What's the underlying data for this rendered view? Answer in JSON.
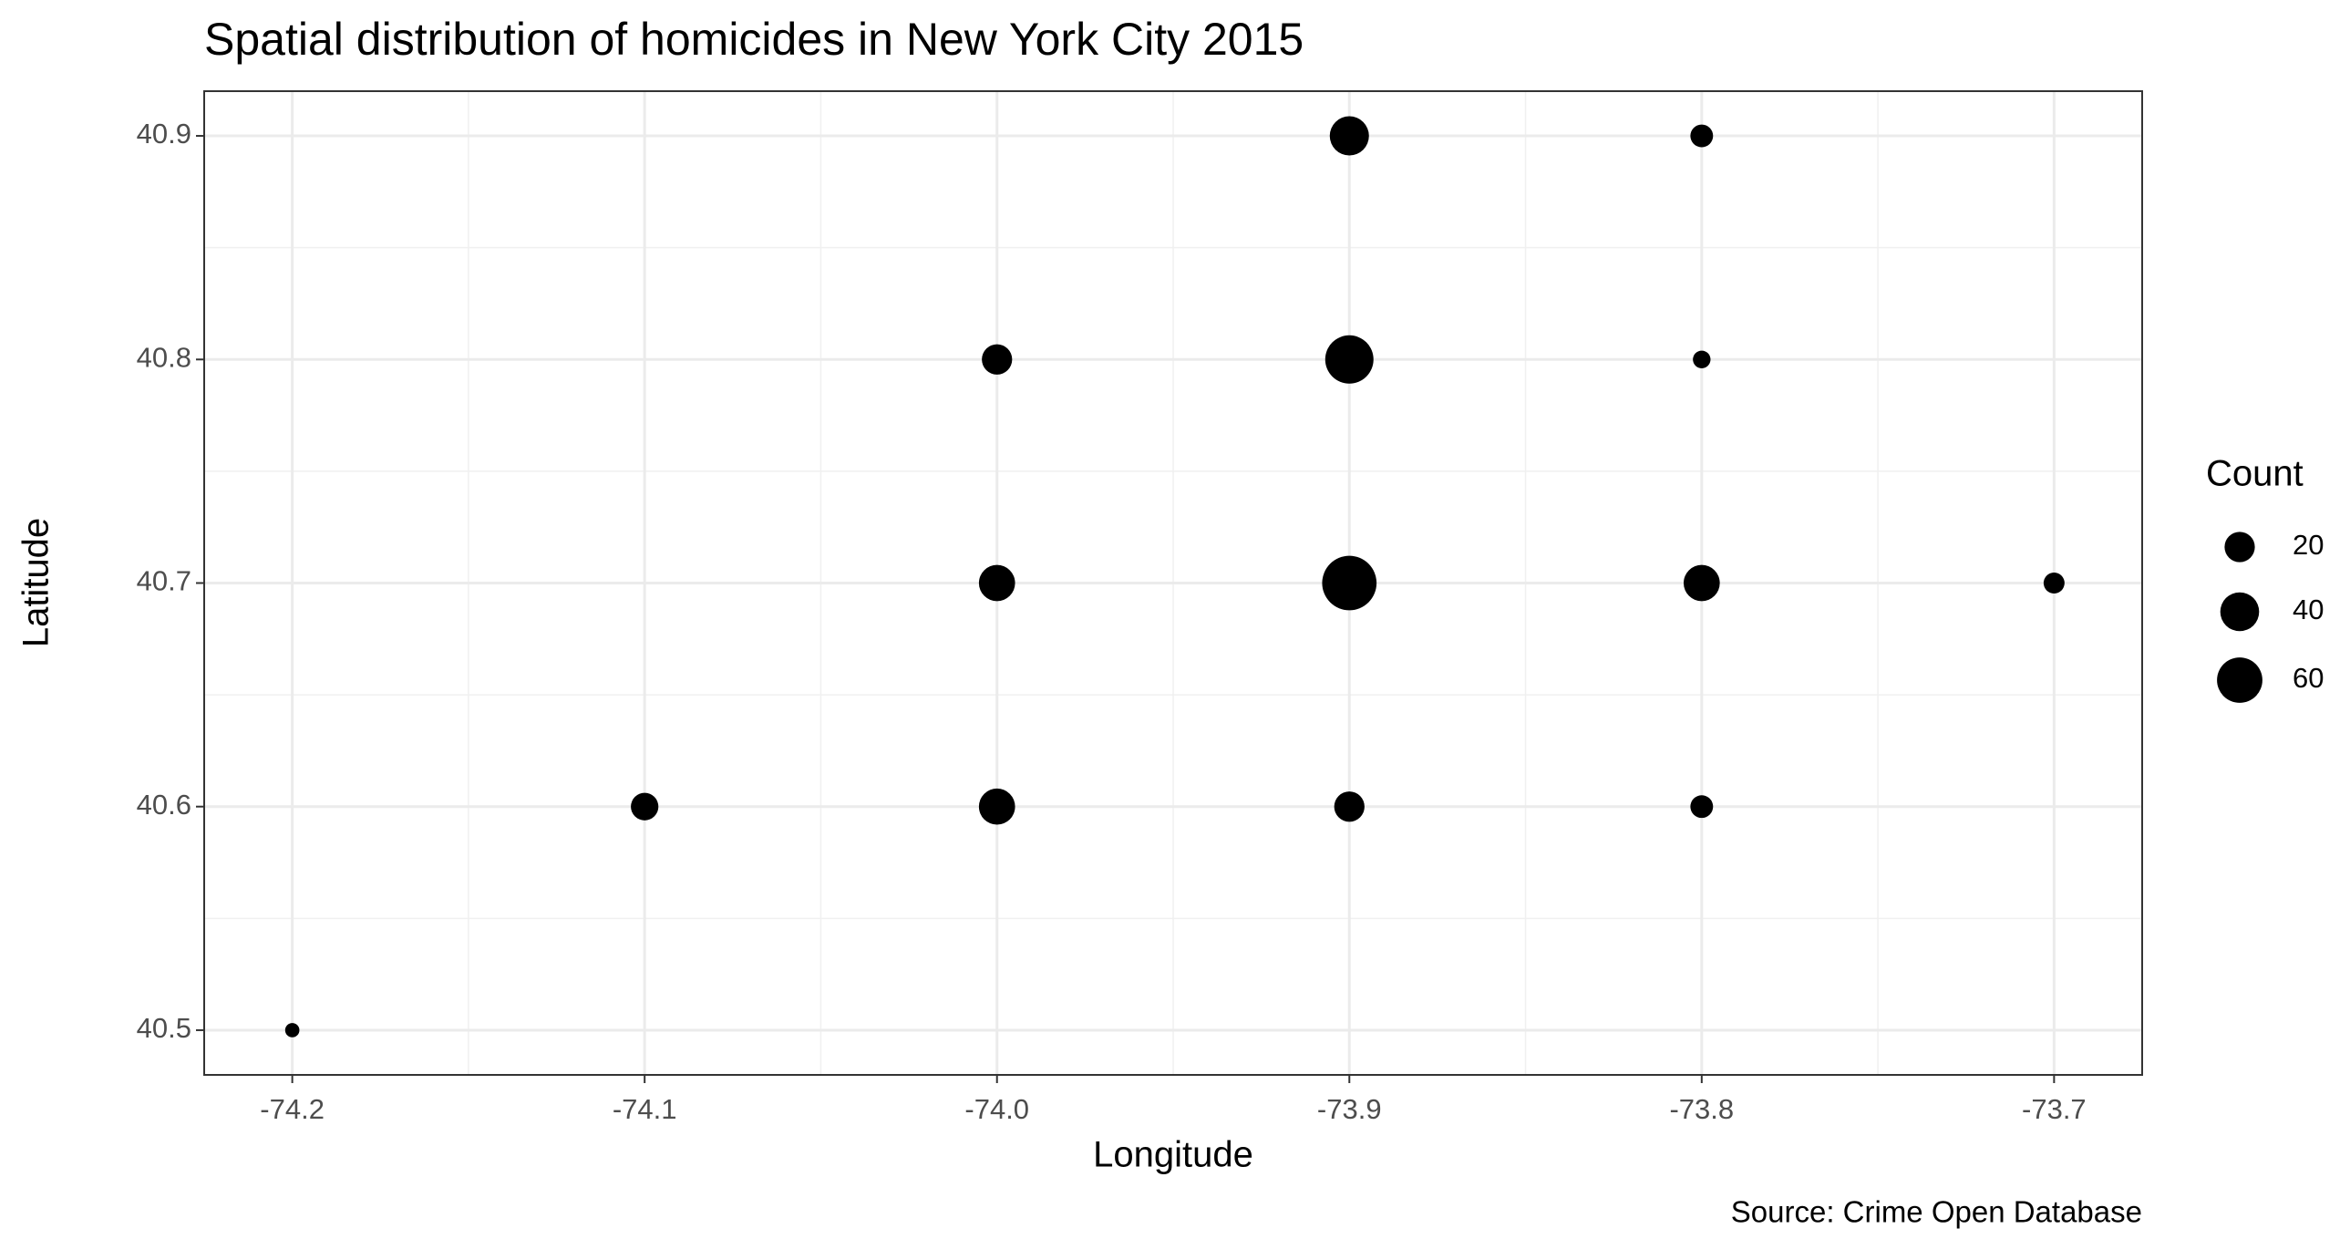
{
  "chart_data": {
    "type": "bubble",
    "title": "Spatial distribution of homicides in New York City 2015",
    "x_label": "Longitude",
    "y_label": "Latitude",
    "caption": "Source: Crime Open Database",
    "x": [
      -74.2,
      -74.1,
      -74.0,
      -73.9,
      -73.8,
      -74.0,
      -73.9,
      -73.8,
      -73.7,
      -74.0,
      -73.9,
      -73.8,
      -73.9,
      -73.8
    ],
    "y": [
      40.5,
      40.6,
      40.6,
      40.6,
      40.6,
      40.7,
      40.7,
      40.7,
      40.7,
      40.8,
      40.8,
      40.8,
      40.9,
      40.9
    ],
    "sizes": [
      1,
      15,
      33,
      20,
      8,
      33,
      94,
      33,
      6,
      20,
      70,
      3,
      41,
      8
    ],
    "color": "#000000",
    "xlim": [
      -74.225,
      -73.675
    ],
    "ylim": [
      40.48,
      40.92
    ],
    "xticks": [
      -74.2,
      -74.1,
      {
        "value": -74,
        "label": "-74.0"
      },
      -73.9,
      -73.8,
      -73.7
    ],
    "yticks": [
      40.5,
      40.6,
      40.7,
      40.8,
      40.9
    ],
    "grid": true,
    "minor_grid": true,
    "size_legend": {
      "title": "Count",
      "values": [
        20,
        40,
        60
      ]
    }
  }
}
